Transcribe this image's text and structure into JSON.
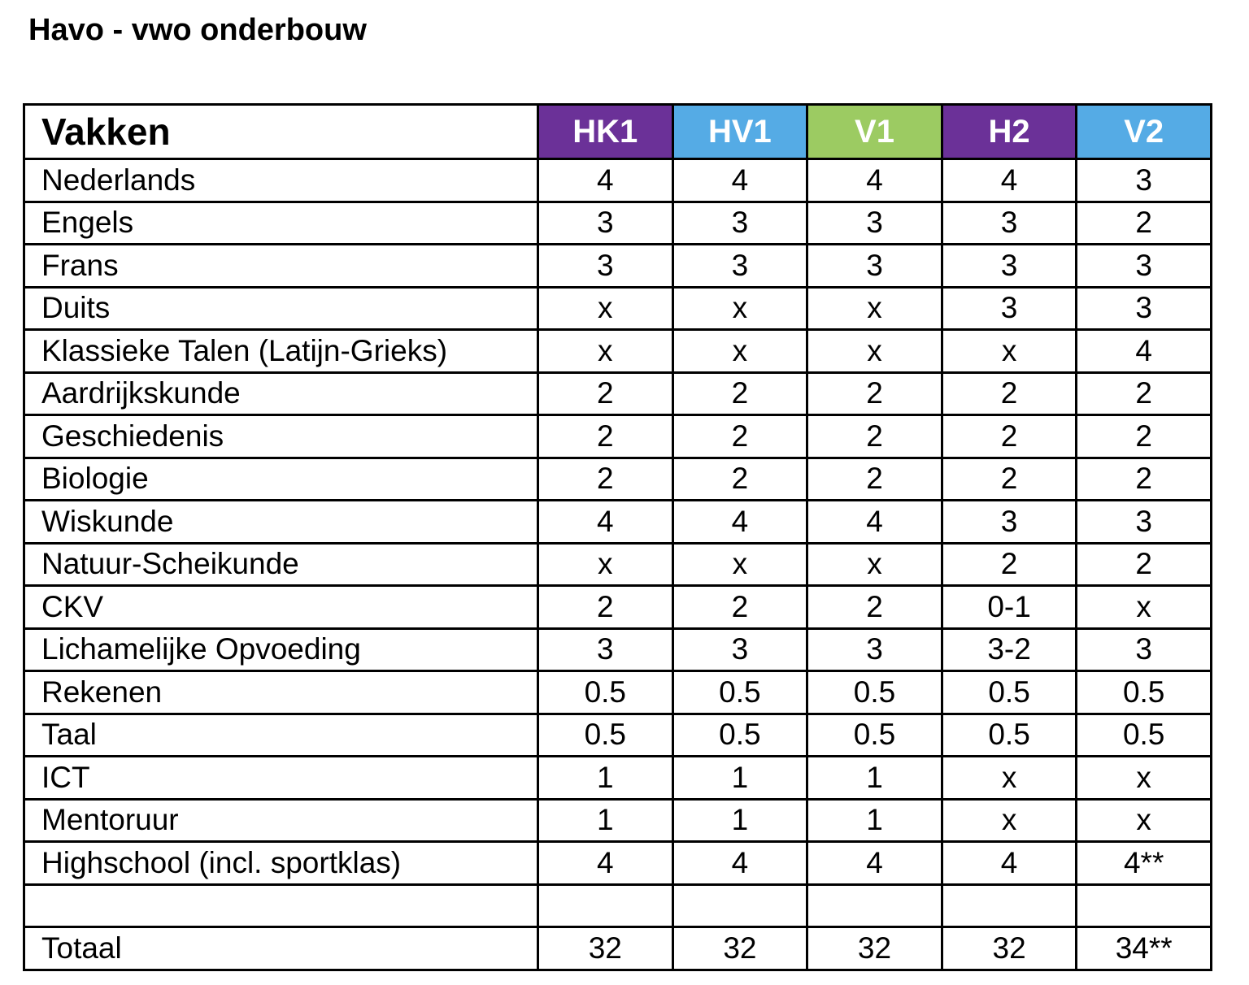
{
  "page_title": "Havo - vwo onderbouw",
  "colors": {
    "purple": "#6B3198",
    "blue": "#55ABE5",
    "green": "#9CCB62",
    "border": "#000000",
    "header_text": "#ffffff",
    "body_text": "#000000",
    "background": "#ffffff"
  },
  "table": {
    "header": {
      "first_col_label": "Vakken",
      "columns": [
        {
          "label": "HK1",
          "color": "#6B3198"
        },
        {
          "label": "HV1",
          "color": "#55ABE5"
        },
        {
          "label": "V1",
          "color": "#9CCB62"
        },
        {
          "label": "H2",
          "color": "#6B3198"
        },
        {
          "label": "V2",
          "color": "#55ABE5"
        }
      ]
    },
    "rows": [
      {
        "subject": "Nederlands",
        "values": [
          "4",
          "4",
          "4",
          "4",
          "3"
        ]
      },
      {
        "subject": "Engels",
        "values": [
          "3",
          "3",
          "3",
          "3",
          "2"
        ]
      },
      {
        "subject": "Frans",
        "values": [
          "3",
          "3",
          "3",
          "3",
          "3"
        ]
      },
      {
        "subject": "Duits",
        "values": [
          "x",
          "x",
          "x",
          "3",
          "3"
        ]
      },
      {
        "subject": "Klassieke Talen (Latijn-Grieks)",
        "values": [
          "x",
          "x",
          "x",
          "x",
          "4"
        ]
      },
      {
        "subject": "Aardrijkskunde",
        "values": [
          "2",
          "2",
          "2",
          "2",
          "2"
        ]
      },
      {
        "subject": "Geschiedenis",
        "values": [
          "2",
          "2",
          "2",
          "2",
          "2"
        ]
      },
      {
        "subject": "Biologie",
        "values": [
          "2",
          "2",
          "2",
          "2",
          "2"
        ]
      },
      {
        "subject": "Wiskunde",
        "values": [
          "4",
          "4",
          "4",
          "3",
          "3"
        ]
      },
      {
        "subject": "Natuur-Scheikunde",
        "values": [
          "x",
          "x",
          "x",
          "2",
          "2"
        ]
      },
      {
        "subject": "CKV",
        "values": [
          "2",
          "2",
          "2",
          "0-1",
          "x"
        ]
      },
      {
        "subject": "Lichamelijke Opvoeding",
        "values": [
          "3",
          "3",
          "3",
          "3-2",
          "3"
        ]
      },
      {
        "subject": "Rekenen",
        "values": [
          "0.5",
          "0.5",
          "0.5",
          "0.5",
          "0.5"
        ]
      },
      {
        "subject": "Taal",
        "values": [
          "0.5",
          "0.5",
          "0.5",
          "0.5",
          "0.5"
        ]
      },
      {
        "subject": "ICT",
        "values": [
          "1",
          "1",
          "1",
          "x",
          "x"
        ]
      },
      {
        "subject": "Mentoruur",
        "values": [
          "1",
          "1",
          "1",
          "x",
          "x"
        ]
      },
      {
        "subject": "Highschool (incl. sportklas)",
        "values": [
          "4",
          "4",
          "4",
          "4",
          "4**"
        ]
      },
      {
        "subject": "",
        "values": [
          "",
          "",
          "",
          "",
          ""
        ]
      },
      {
        "subject": "Totaal",
        "values": [
          "32",
          "32",
          "32",
          "32",
          "34**"
        ]
      }
    ]
  }
}
